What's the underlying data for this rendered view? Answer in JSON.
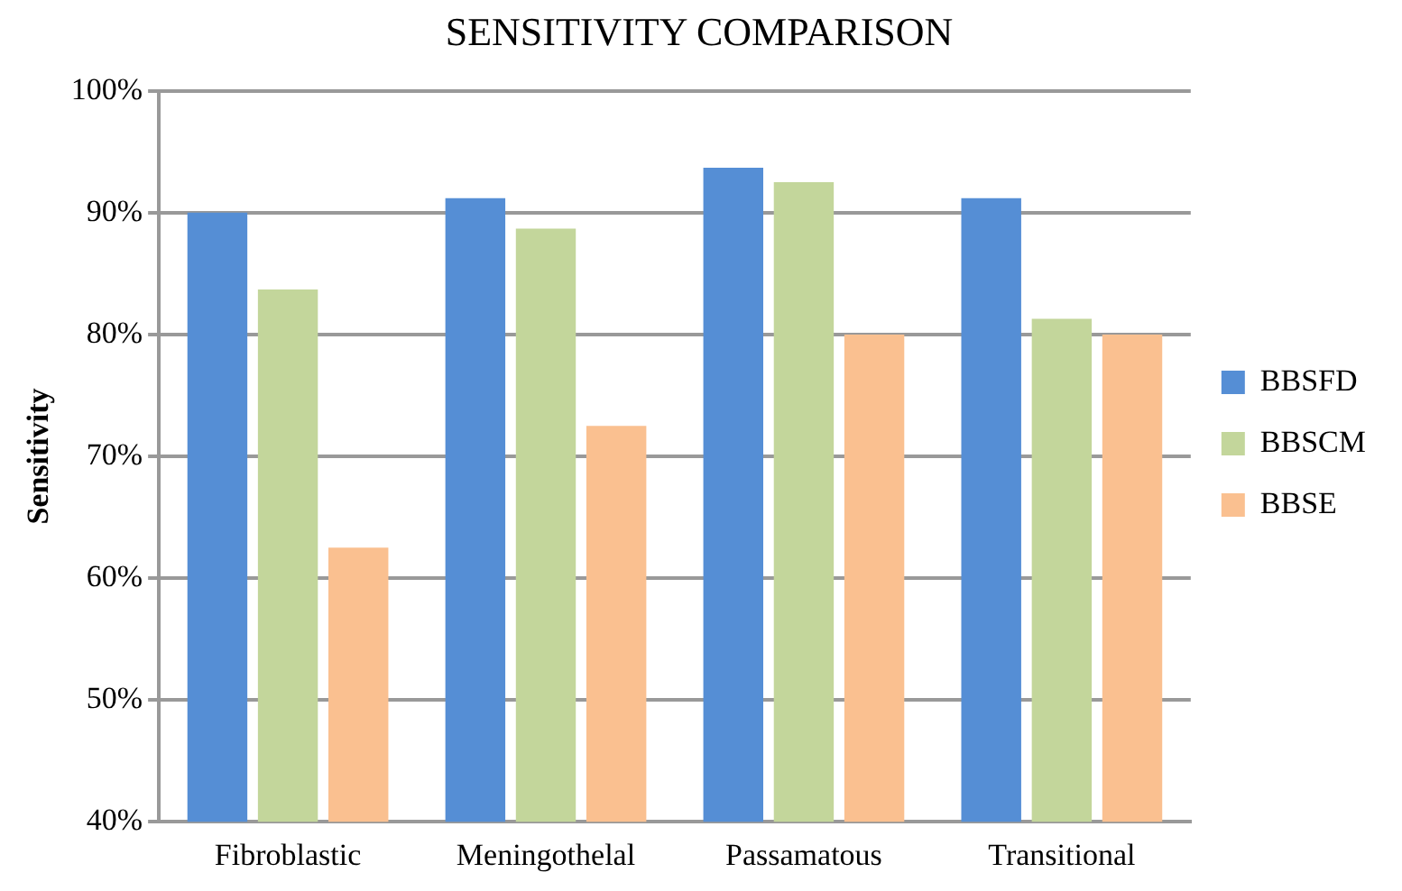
{
  "chart_data": {
    "type": "bar",
    "title": "SENSITIVITY COMPARISON",
    "ylabel": "Sensitivity",
    "categories": [
      "Fibroblastic",
      "Meningothelal",
      "Passamatous",
      "Transitional"
    ],
    "series": [
      {
        "name": "BBSFD",
        "color": "#558ed5",
        "values": [
          90,
          91.2,
          93.7,
          91.2
        ]
      },
      {
        "name": "BBSCM",
        "color": "#c3d69b",
        "values": [
          83.7,
          88.7,
          92.5,
          81.3
        ]
      },
      {
        "name": "BBSE",
        "color": "#fac090",
        "values": [
          62.5,
          72.5,
          80,
          80
        ]
      }
    ],
    "ylim": [
      40,
      100
    ],
    "yticks": [
      {
        "value": 40,
        "label": "40%"
      },
      {
        "value": 50,
        "label": "50%"
      },
      {
        "value": 60,
        "label": "60%"
      },
      {
        "value": 70,
        "label": "70%"
      },
      {
        "value": 80,
        "label": "80%"
      },
      {
        "value": 90,
        "label": "90%"
      },
      {
        "value": 100,
        "label": "100%"
      }
    ],
    "grid": "y",
    "legend": "right"
  }
}
